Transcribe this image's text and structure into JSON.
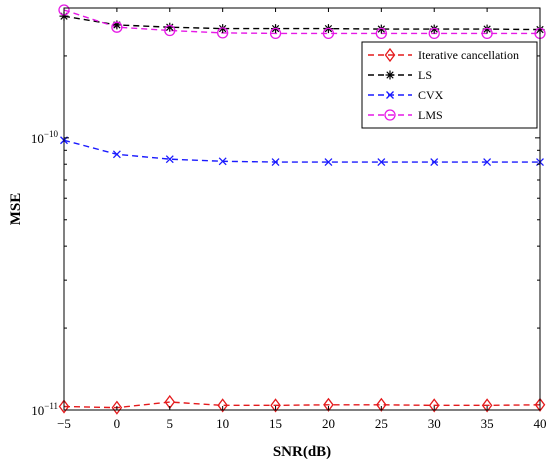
{
  "chart_data": {
    "type": "line",
    "xlabel": "SNR(dB)",
    "ylabel": "MSE",
    "x": [
      -5,
      0,
      5,
      10,
      15,
      20,
      25,
      30,
      35,
      40
    ],
    "xlim": [
      -5,
      40
    ],
    "ylim": [
      1e-11,
      3e-10
    ],
    "yscale": "log",
    "grid": false,
    "legend_position": "top-right",
    "x_tick_labels": [
      "−5",
      "0",
      "5",
      "10",
      "15",
      "20",
      "25",
      "30",
      "35",
      "40"
    ],
    "y_tick_labels": [
      {
        "base": "10",
        "exp": "−11",
        "value": 1e-11
      },
      {
        "base": "10",
        "exp": "−10",
        "value": 1e-10
      }
    ],
    "series": [
      {
        "name": "Iterative cancellation",
        "color": "#e41a1c",
        "marker": "diamond",
        "values": [
          1.03e-11,
          1.02e-11,
          1.07e-11,
          1.04e-11,
          1.04e-11,
          1.045e-11,
          1.045e-11,
          1.04e-11,
          1.04e-11,
          1.045e-11
        ]
      },
      {
        "name": "LS",
        "color": "#000000",
        "marker": "asterisk",
        "values": [
          2.8e-10,
          2.6e-10,
          2.55e-10,
          2.52e-10,
          2.52e-10,
          2.52e-10,
          2.51e-10,
          2.51e-10,
          2.51e-10,
          2.5e-10
        ]
      },
      {
        "name": "CVX",
        "color": "#1a1aff",
        "marker": "x",
        "values": [
          9.8e-11,
          8.7e-11,
          8.35e-11,
          8.2e-11,
          8.15e-11,
          8.15e-11,
          8.15e-11,
          8.15e-11,
          8.15e-11,
          8.15e-11
        ]
      },
      {
        "name": "LMS",
        "color": "#e619e6",
        "marker": "circle",
        "values": [
          2.95e-10,
          2.55e-10,
          2.48e-10,
          2.43e-10,
          2.42e-10,
          2.42e-10,
          2.42e-10,
          2.42e-10,
          2.42e-10,
          2.42e-10
        ]
      }
    ]
  }
}
